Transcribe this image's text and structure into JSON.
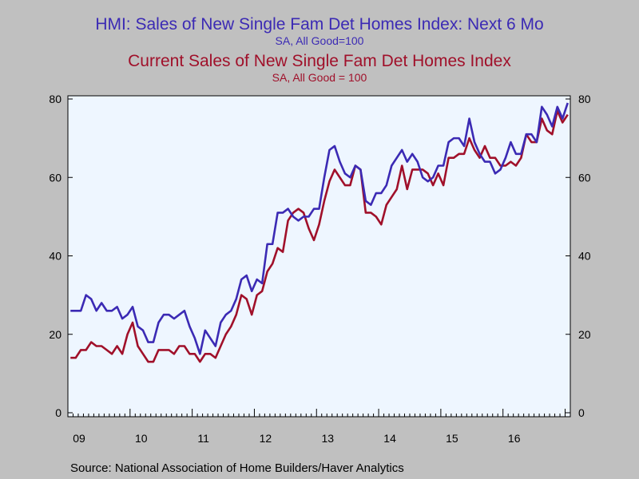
{
  "titles": {
    "series1_title": "HMI: Sales of New Single Fam Det Homes Index: Next 6 Mo",
    "series1_subtitle": "SA, All Good=100",
    "series2_title": "Current Sales of New Single Fam Det Homes Index",
    "series2_subtitle": "SA, All Good = 100"
  },
  "source": "Source:  National Association of Home Builders/Haver Analytics",
  "colors": {
    "series1": "#3b2ab4",
    "series2": "#a0102a",
    "plot_bg": "#eef6ff",
    "page_bg": "#c0c0c0"
  },
  "chart_data": {
    "type": "line",
    "x_start": "2009-01",
    "frequency": "monthly",
    "x_tick_labels": [
      "09",
      "10",
      "11",
      "12",
      "13",
      "14",
      "15",
      "16"
    ],
    "ylim": [
      0,
      80
    ],
    "y_ticks": [
      0,
      20,
      40,
      60,
      80
    ],
    "y2_ticks": [
      0,
      20,
      40,
      60,
      80
    ],
    "grid": false,
    "legend": "none",
    "series": [
      {
        "name": "HMI: Sales of New Single Fam Det Homes Index: Next 6 Mo",
        "axis": "left",
        "values": [
          26,
          26,
          26,
          30,
          29,
          26,
          28,
          26,
          26,
          27,
          24,
          25,
          27,
          22,
          21,
          18,
          18,
          23,
          25,
          25,
          24,
          25,
          26,
          22,
          19,
          15,
          21,
          19,
          17,
          23,
          25,
          26,
          29,
          34,
          35,
          31,
          34,
          33,
          43,
          43,
          51,
          51,
          52,
          50,
          49,
          50,
          50,
          52,
          52,
          60,
          67,
          68,
          64,
          61,
          60,
          63,
          62,
          54,
          53,
          56,
          56,
          58,
          63,
          65,
          67,
          64,
          66,
          64,
          60,
          59,
          60,
          63,
          63,
          69,
          70,
          70,
          68,
          75,
          69,
          66,
          64,
          64,
          61,
          62,
          65,
          69,
          66,
          66,
          71,
          71,
          69,
          78,
          76,
          73,
          78,
          75,
          79
        ]
      },
      {
        "name": "Current Sales of New Single Fam Det Homes Index",
        "axis": "left",
        "values": [
          14,
          14,
          16,
          16,
          18,
          17,
          17,
          16,
          15,
          17,
          15,
          20,
          23,
          17,
          15,
          13,
          13,
          16,
          16,
          16,
          15,
          17,
          17,
          15,
          15,
          13,
          15,
          15,
          14,
          17,
          20,
          22,
          25,
          30,
          29,
          25,
          30,
          31,
          36,
          38,
          42,
          41,
          49,
          51,
          52,
          51,
          47,
          44,
          48,
          54,
          59,
          62,
          60,
          58,
          58,
          63,
          62,
          51,
          51,
          50,
          48,
          53,
          55,
          57,
          63,
          57,
          62,
          62,
          62,
          61,
          58,
          61,
          58,
          65,
          65,
          66,
          66,
          70,
          67,
          65,
          68,
          65,
          65,
          63,
          63,
          64,
          63,
          65,
          71,
          69,
          69,
          75,
          72,
          71,
          77,
          74,
          76
        ]
      }
    ]
  }
}
